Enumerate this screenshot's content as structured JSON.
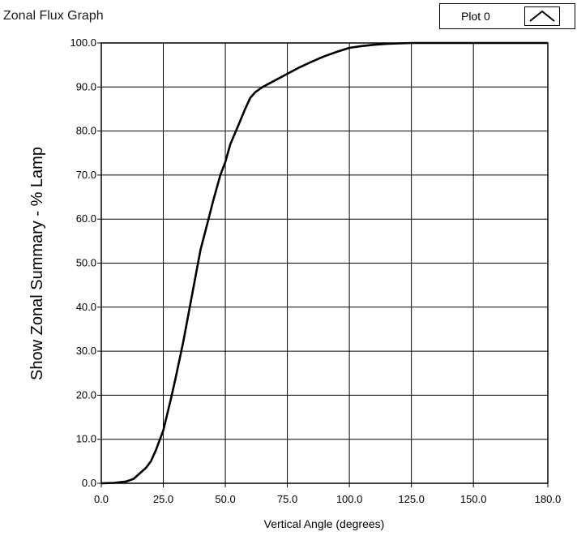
{
  "title": "Zonal Flux Graph",
  "legend": {
    "label": "Plot 0",
    "icon": "line-plot-icon"
  },
  "chart_data": {
    "type": "line",
    "title": "Zonal Flux Graph",
    "xlabel": "Vertical Angle (degrees)",
    "ylabel": "Show Zonal Summary - % Lamp",
    "xlim": [
      0,
      180
    ],
    "ylim": [
      0,
      100
    ],
    "xticks": [
      0,
      25,
      50,
      75,
      100,
      125,
      150,
      180
    ],
    "xtick_labels": [
      "0.0",
      "25.0",
      "50.0",
      "75.0",
      "100.0",
      "125.0",
      "150.0",
      "180.0"
    ],
    "yticks": [
      0,
      10,
      20,
      30,
      40,
      50,
      60,
      70,
      80,
      90,
      100
    ],
    "ytick_labels": [
      "0.0",
      "10.0",
      "20.0",
      "30.0",
      "40.0",
      "50.0",
      "60.0",
      "70.0",
      "80.0",
      "90.0",
      "100.0"
    ],
    "grid": true,
    "legend_position": "top-right",
    "series": [
      {
        "name": "Plot 0",
        "color": "#000000",
        "x": [
          0,
          5,
          10,
          13,
          15,
          18,
          20,
          22,
          25,
          28,
          30,
          33,
          35,
          38,
          40,
          43,
          45,
          48,
          50,
          52,
          55,
          58,
          60,
          62,
          65,
          70,
          75,
          80,
          85,
          90,
          95,
          100,
          105,
          110,
          115,
          120,
          125,
          130,
          140,
          150,
          160,
          170,
          180
        ],
        "y": [
          0,
          0.1,
          0.4,
          1.0,
          2.0,
          3.5,
          5.0,
          7.5,
          12.0,
          19.0,
          24.0,
          32.0,
          38.0,
          47.0,
          53.0,
          59.5,
          64.0,
          70.0,
          73.0,
          77.0,
          81.0,
          85.0,
          87.5,
          88.8,
          90.0,
          91.5,
          93.0,
          94.5,
          95.8,
          97.0,
          98.0,
          98.9,
          99.3,
          99.6,
          99.8,
          99.9,
          100.0,
          100.0,
          100.0,
          100.0,
          100.0,
          100.0,
          100.0
        ]
      }
    ]
  }
}
